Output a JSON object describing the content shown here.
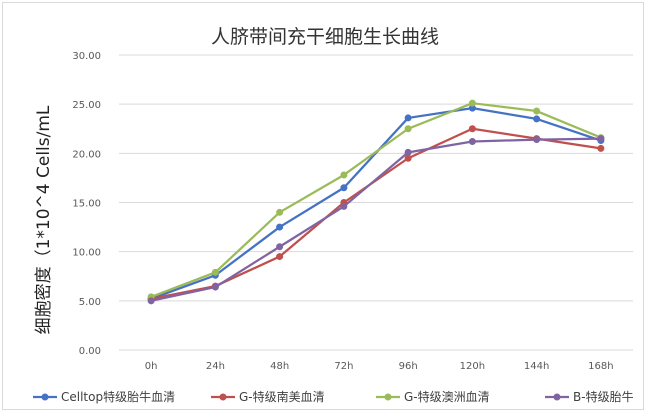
{
  "chart_data": {
    "type": "line",
    "title": "人脐带间充干细胞生长曲线",
    "xlabel": "",
    "ylabel": "细胞密度（1*10^4 Cells/mL",
    "categories": [
      "0h",
      "24h",
      "48h",
      "72h",
      "96h",
      "120h",
      "144h",
      "168h"
    ],
    "ylim": [
      0,
      30
    ],
    "yticks": [
      "0.00",
      "5.00",
      "10.00",
      "15.00",
      "20.00",
      "25.00",
      "30.00"
    ],
    "grid": true,
    "legend_position": "bottom",
    "series": [
      {
        "name": "Celltop特级胎牛血清",
        "color": "#4472c4",
        "values": [
          5.2,
          7.6,
          12.5,
          16.5,
          23.6,
          24.6,
          23.5,
          21.3
        ]
      },
      {
        "name": "G-特级南美血清",
        "color": "#c0504d",
        "values": [
          5.2,
          6.5,
          9.5,
          15.0,
          19.5,
          22.5,
          21.5,
          20.5
        ]
      },
      {
        "name": "G-特级澳洲血清",
        "color": "#9bbb59",
        "values": [
          5.4,
          7.9,
          14.0,
          17.8,
          22.5,
          25.1,
          24.3,
          21.6
        ]
      },
      {
        "name": "B-特级胎牛",
        "color": "#8064a2",
        "values": [
          5.0,
          6.4,
          10.5,
          14.6,
          20.1,
          21.2,
          21.4,
          21.5
        ]
      }
    ]
  }
}
